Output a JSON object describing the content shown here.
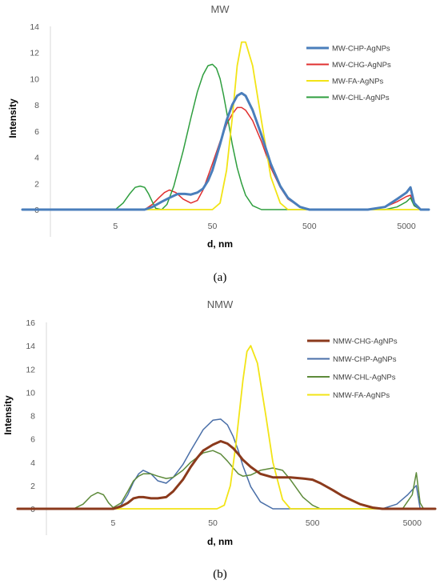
{
  "chart_data": [
    {
      "type": "line",
      "title": "MW",
      "xlabel": "d, nm",
      "ylabel": "Intensity",
      "caption": "(a)",
      "x_scale": "log",
      "xlim": [
        0.55,
        8500
      ],
      "ylim": [
        0,
        14
      ],
      "y_ticks": [
        0,
        2,
        4,
        6,
        8,
        10,
        12,
        14
      ],
      "x_ticks": [
        5,
        50,
        500,
        5000
      ],
      "x_tick_labels": [
        "5",
        "50",
        "500",
        "5000"
      ],
      "legend_position": "right",
      "series": [
        {
          "name": "MW-CHP-AgNPs",
          "color": "#4a7ebb",
          "width": 3,
          "x": [
            0.55,
            10,
            12,
            15,
            18,
            22,
            26,
            30,
            35,
            40,
            45,
            50,
            60,
            70,
            80,
            90,
            100,
            110,
            130,
            160,
            200,
            250,
            300,
            400,
            500,
            700,
            1000,
            2000,
            3000,
            4000,
            5000,
            5500,
            6000,
            7000,
            8500
          ],
          "y": [
            0,
            0,
            0.2,
            0.6,
            0.9,
            1.2,
            1.2,
            1.15,
            1.3,
            1.6,
            2.2,
            3.0,
            5.0,
            6.8,
            8.0,
            8.7,
            8.9,
            8.7,
            7.6,
            5.7,
            3.5,
            1.8,
            0.9,
            0.2,
            0,
            0,
            0,
            0,
            0.2,
            0.8,
            1.3,
            1.7,
            0.5,
            0,
            0
          ]
        },
        {
          "name": "MW-CHG-AgNPs",
          "color": "#e03030",
          "width": 1.5,
          "x": [
            0.55,
            10,
            12,
            14,
            16,
            18,
            21,
            25,
            30,
            35,
            40,
            50,
            60,
            70,
            80,
            90,
            100,
            110,
            130,
            160,
            200,
            250,
            300,
            400,
            500,
            700,
            1000,
            2000,
            3000,
            4000,
            5000,
            5500,
            6000,
            7000,
            8500
          ],
          "y": [
            0,
            0,
            0.4,
            0.9,
            1.3,
            1.5,
            1.3,
            0.8,
            0.5,
            0.7,
            1.5,
            3.5,
            5.2,
            6.5,
            7.3,
            7.8,
            7.8,
            7.6,
            6.8,
            5.2,
            3.2,
            1.7,
            0.8,
            0.2,
            0,
            0,
            0,
            0,
            0.2,
            0.6,
            1.0,
            1.1,
            0.3,
            0,
            0
          ]
        },
        {
          "name": "MW-FA-AgNPs",
          "color": "#f2e416",
          "width": 1.8,
          "x": [
            0.55,
            50,
            60,
            70,
            80,
            90,
            100,
            110,
            130,
            160,
            200,
            250,
            300,
            8500
          ],
          "y": [
            0,
            0,
            0.5,
            3.0,
            7.0,
            11.0,
            12.8,
            12.8,
            11.0,
            6.8,
            2.5,
            0.5,
            0,
            0
          ]
        },
        {
          "name": "MW-CHL-AgNPs",
          "color": "#2e9e3e",
          "width": 1.5,
          "x": [
            0.55,
            5,
            6,
            7,
            8,
            9,
            10,
            11,
            12,
            13,
            15,
            17,
            20,
            25,
            30,
            35,
            40,
            45,
            50,
            55,
            60,
            65,
            70,
            80,
            90,
            100,
            110,
            130,
            160,
            200,
            500,
            3000,
            4000,
            5000,
            5500,
            6000,
            7000,
            8500
          ],
          "y": [
            0,
            0,
            0.5,
            1.2,
            1.7,
            1.8,
            1.7,
            1.2,
            0.6,
            0.1,
            0,
            0.4,
            1.8,
            4.5,
            7.0,
            9.0,
            10.3,
            11.0,
            11.1,
            10.8,
            10.0,
            8.8,
            7.5,
            5.0,
            3.2,
            2.0,
            1.1,
            0.3,
            0,
            0,
            0,
            0,
            0.2,
            0.6,
            0.9,
            0.3,
            0,
            0
          ]
        }
      ]
    },
    {
      "type": "line",
      "title": "NMW",
      "xlabel": "d, nm",
      "ylabel": "Intensity",
      "caption": "(b)",
      "x_scale": "log",
      "xlim": [
        0.55,
        8500
      ],
      "ylim": [
        0,
        16
      ],
      "y_ticks": [
        0,
        2,
        4,
        6,
        8,
        10,
        12,
        14,
        16
      ],
      "x_ticks": [
        5,
        50,
        500,
        5000
      ],
      "x_tick_labels": [
        "5",
        "50",
        "500",
        "5000"
      ],
      "legend_position": "right",
      "series": [
        {
          "name": "NMW-CHG-AgNPs",
          "color": "#8b3a1c",
          "width": 3,
          "x": [
            0.55,
            5,
            6,
            7,
            8,
            9,
            10,
            12,
            14,
            17,
            20,
            25,
            30,
            35,
            40,
            50,
            60,
            70,
            80,
            90,
            100,
            120,
            150,
            200,
            300,
            400,
            500,
            600,
            800,
            1000,
            1500,
            2000,
            2500,
            8500
          ],
          "y": [
            0,
            0,
            0.2,
            0.5,
            0.9,
            1.0,
            1.0,
            0.9,
            0.9,
            1.0,
            1.5,
            2.5,
            3.6,
            4.4,
            5.0,
            5.5,
            5.8,
            5.6,
            5.2,
            4.7,
            4.2,
            3.6,
            3.0,
            2.7,
            2.7,
            2.6,
            2.5,
            2.2,
            1.6,
            1.1,
            0.4,
            0.1,
            0,
            0
          ]
        },
        {
          "name": "NMW-CHP-AgNPs",
          "color": "#4a6fa8",
          "width": 1.5,
          "x": [
            0.55,
            5,
            6,
            7,
            8,
            9,
            10,
            12,
            14,
            17,
            20,
            25,
            30,
            40,
            50,
            60,
            70,
            80,
            90,
            100,
            120,
            150,
            200,
            300,
            400,
            2500,
            3500,
            4500,
            5500,
            6000,
            8500
          ],
          "y": [
            0,
            0,
            0.3,
            1.2,
            2.3,
            3.0,
            3.3,
            3.0,
            2.4,
            2.2,
            2.7,
            3.8,
            5.0,
            6.8,
            7.6,
            7.7,
            7.2,
            6.2,
            5.0,
            3.7,
            1.9,
            0.6,
            0,
            0,
            0,
            0,
            0.4,
            1.2,
            2.0,
            0,
            0
          ]
        },
        {
          "name": "NMW-CHL-AgNPs",
          "color": "#5d8a3a",
          "width": 1.5,
          "x": [
            0.55,
            2,
            2.5,
            3,
            3.5,
            4,
            4.5,
            5,
            6,
            7,
            8,
            9,
            10,
            12,
            14,
            17,
            20,
            25,
            30,
            40,
            50,
            60,
            70,
            80,
            90,
            100,
            120,
            150,
            200,
            250,
            300,
            400,
            500,
            600,
            800,
            4000,
            5000,
            5500,
            6000,
            6500,
            8500
          ],
          "y": [
            0,
            0,
            0.4,
            1.1,
            1.4,
            1.2,
            0.5,
            0.1,
            0.5,
            1.5,
            2.4,
            2.8,
            3.0,
            3.0,
            2.8,
            2.6,
            2.7,
            3.3,
            4.0,
            4.8,
            5.0,
            4.7,
            4.1,
            3.5,
            3.0,
            2.8,
            2.9,
            3.3,
            3.5,
            3.3,
            2.5,
            1.0,
            0.3,
            0,
            0,
            0,
            1.2,
            3.1,
            0.5,
            0,
            0
          ]
        },
        {
          "name": "NMW-FA-AgNPs",
          "color": "#f2e416",
          "width": 1.8,
          "x": [
            0.55,
            55,
            65,
            75,
            85,
            100,
            110,
            120,
            140,
            170,
            200,
            250,
            300,
            8500
          ],
          "y": [
            0,
            0,
            0.3,
            2.0,
            5.5,
            11.0,
            13.5,
            14.0,
            12.5,
            8.0,
            4.0,
            0.8,
            0,
            0
          ]
        }
      ]
    }
  ]
}
